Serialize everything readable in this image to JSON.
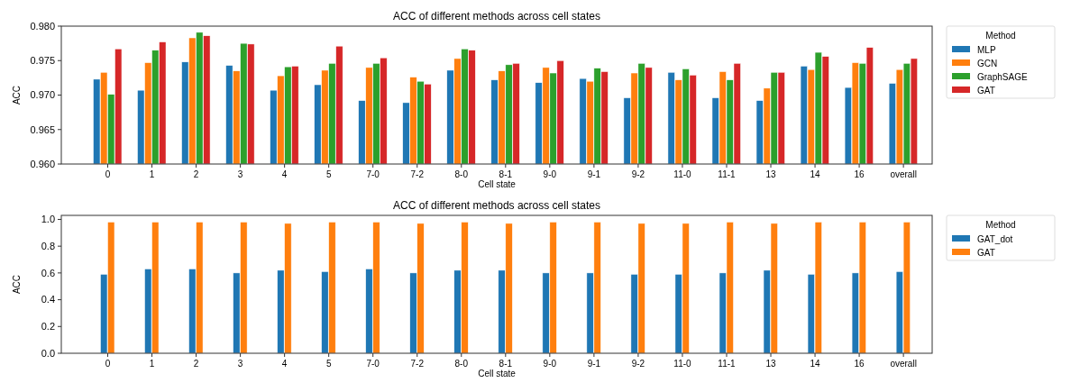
{
  "chart_data": [
    {
      "type": "bar",
      "title": "ACC of different methods across cell states",
      "xlabel": "Cell state",
      "ylabel": "ACC",
      "legend_title": "Method",
      "legend": "right",
      "categories": [
        "0",
        "1",
        "2",
        "3",
        "4",
        "5",
        "7-0",
        "7-2",
        "8-0",
        "8-1",
        "9-0",
        "9-1",
        "9-2",
        "11-0",
        "11-1",
        "13",
        "14",
        "16",
        "overall"
      ],
      "ylim": [
        0.96,
        0.98
      ],
      "yticks": [
        {
          "value": 0.96,
          "label": "0.960"
        },
        {
          "value": 0.965,
          "label": "0.965"
        },
        {
          "value": 0.97,
          "label": "0.970"
        },
        {
          "value": 0.975,
          "label": "0.975"
        },
        {
          "value": 0.98,
          "label": "0.980"
        }
      ],
      "series": [
        {
          "name": "MLP",
          "color": "#1f77b4",
          "values": [
            0.9723,
            0.9707,
            0.9748,
            0.9743,
            0.9707,
            0.9715,
            0.9692,
            0.9689,
            0.9736,
            0.9722,
            0.9718,
            0.9724,
            0.9696,
            0.9733,
            0.9696,
            0.9692,
            0.9742,
            0.9711,
            0.9717
          ]
        },
        {
          "name": "GCN",
          "color": "#ff7f0e",
          "values": [
            0.9733,
            0.9747,
            0.9783,
            0.9735,
            0.9728,
            0.9736,
            0.974,
            0.9726,
            0.9753,
            0.9735,
            0.974,
            0.972,
            0.9732,
            0.9722,
            0.9734,
            0.971,
            0.9737,
            0.9747,
            0.9737
          ]
        },
        {
          "name": "GraphSAGE",
          "color": "#2ca02c",
          "values": [
            0.9701,
            0.9765,
            0.9791,
            0.9775,
            0.9741,
            0.9746,
            0.9746,
            0.972,
            0.9767,
            0.9744,
            0.9732,
            0.9739,
            0.9746,
            0.9738,
            0.9722,
            0.9733,
            0.9762,
            0.9746,
            0.9746
          ]
        },
        {
          "name": "GAT",
          "color": "#d62728",
          "values": [
            0.9767,
            0.9777,
            0.9786,
            0.9774,
            0.9742,
            0.9771,
            0.9754,
            0.9716,
            0.9765,
            0.9746,
            0.975,
            0.9734,
            0.974,
            0.9729,
            0.9746,
            0.9733,
            0.9756,
            0.9769,
            0.9753
          ]
        }
      ]
    },
    {
      "type": "bar",
      "title": "ACC of different methods across cell states",
      "xlabel": "Cell state",
      "ylabel": "ACC",
      "legend_title": "Method",
      "legend": "right",
      "categories": [
        "0",
        "1",
        "2",
        "3",
        "4",
        "5",
        "7-0",
        "7-2",
        "8-0",
        "8-1",
        "9-0",
        "9-1",
        "9-2",
        "11-0",
        "11-1",
        "13",
        "14",
        "16",
        "overall"
      ],
      "ylim": [
        0,
        1.03
      ],
      "yticks": [
        {
          "value": 0,
          "label": "0.0"
        },
        {
          "value": 0.2,
          "label": "0.2"
        },
        {
          "value": 0.4,
          "label": "0.4"
        },
        {
          "value": 0.6,
          "label": "0.6"
        },
        {
          "value": 0.8,
          "label": "0.8"
        },
        {
          "value": 1,
          "label": "1.0"
        }
      ],
      "series": [
        {
          "name": "GAT_dot",
          "color": "#1f77b4",
          "values": [
            0.59,
            0.63,
            0.63,
            0.6,
            0.62,
            0.61,
            0.63,
            0.6,
            0.62,
            0.62,
            0.6,
            0.6,
            0.59,
            0.59,
            0.6,
            0.62,
            0.59,
            0.6,
            0.61
          ]
        },
        {
          "name": "GAT",
          "color": "#ff7f0e",
          "values": [
            0.98,
            0.98,
            0.98,
            0.98,
            0.97,
            0.98,
            0.98,
            0.97,
            0.98,
            0.97,
            0.98,
            0.98,
            0.97,
            0.97,
            0.98,
            0.97,
            0.98,
            0.98,
            0.98
          ]
        }
      ]
    }
  ]
}
